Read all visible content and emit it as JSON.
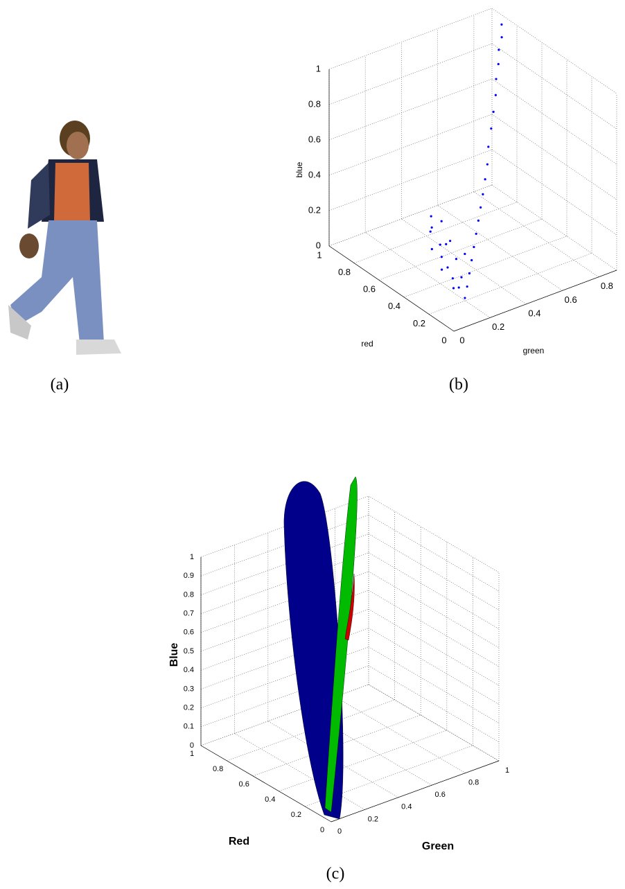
{
  "captions": [
    "(a)",
    "(b)",
    "(c)"
  ],
  "chart_data": [
    {
      "type": "scatter3d",
      "color": "#0000ff",
      "grid": true,
      "xlabel": "red",
      "ylabel": "green",
      "zlabel": "blue",
      "xlim": [
        0,
        1
      ],
      "xticks": [
        0,
        0.2,
        0.4,
        0.6,
        0.8,
        1
      ],
      "ylim": [
        0,
        0.9
      ],
      "yticks": [
        0,
        0.2,
        0.4,
        0.6,
        0.8
      ],
      "zlim": [
        0,
        1
      ],
      "zticks": [
        0,
        0.2,
        0.4,
        0.6,
        0.8,
        1
      ],
      "points": {
        "red": [
          0.85,
          0.82,
          0.8,
          0.76,
          0.72,
          0.68,
          0.64,
          0.6,
          0.55,
          0.5,
          0.46,
          0.42,
          0.38,
          0.34,
          0.3,
          0.26,
          0.22,
          0.18,
          0.14,
          0.1,
          0.4,
          0.38,
          0.42,
          0.36,
          0.35,
          0.33,
          0.3,
          0.28,
          0.32,
          0.27,
          0.25,
          0.3,
          0.22,
          0.34,
          0.4,
          0.26,
          0.2
        ],
        "green": [
          0.85,
          0.83,
          0.8,
          0.77,
          0.73,
          0.7,
          0.66,
          0.62,
          0.57,
          0.53,
          0.49,
          0.45,
          0.41,
          0.37,
          0.33,
          0.29,
          0.25,
          0.21,
          0.17,
          0.13,
          0.15,
          0.14,
          0.16,
          0.18,
          0.12,
          0.16,
          0.14,
          0.15,
          0.2,
          0.18,
          0.2,
          0.22,
          0.15,
          0.2,
          0.2,
          0.24,
          0.18
        ],
        "blue": [
          1.0,
          0.95,
          0.9,
          0.85,
          0.8,
          0.74,
          0.68,
          0.62,
          0.56,
          0.5,
          0.45,
          0.4,
          0.36,
          0.32,
          0.28,
          0.24,
          0.2,
          0.16,
          0.12,
          0.09,
          0.4,
          0.35,
          0.3,
          0.38,
          0.25,
          0.2,
          0.15,
          0.3,
          0.28,
          0.1,
          0.05,
          0.18,
          0.08,
          0.12,
          0.22,
          0.22,
          0.14
        ]
      }
    },
    {
      "type": "surface3d",
      "grid": true,
      "surface_colors": [
        "#00008b",
        "#00bb00",
        "#cc0000"
      ],
      "xlabel": "Red",
      "ylabel": "Green",
      "zlabel": "Blue",
      "xlim": [
        0,
        1
      ],
      "xticks": [
        0,
        0.2,
        0.4,
        0.6,
        0.8,
        1
      ],
      "ylim": [
        0,
        1
      ],
      "yticks": [
        0,
        0.2,
        0.4,
        0.6,
        0.8,
        1
      ],
      "zlim": [
        0,
        1
      ],
      "zticks": [
        0,
        0.1,
        0.2,
        0.3,
        0.4,
        0.5,
        0.6,
        0.7,
        0.8,
        0.9,
        1
      ]
    }
  ]
}
